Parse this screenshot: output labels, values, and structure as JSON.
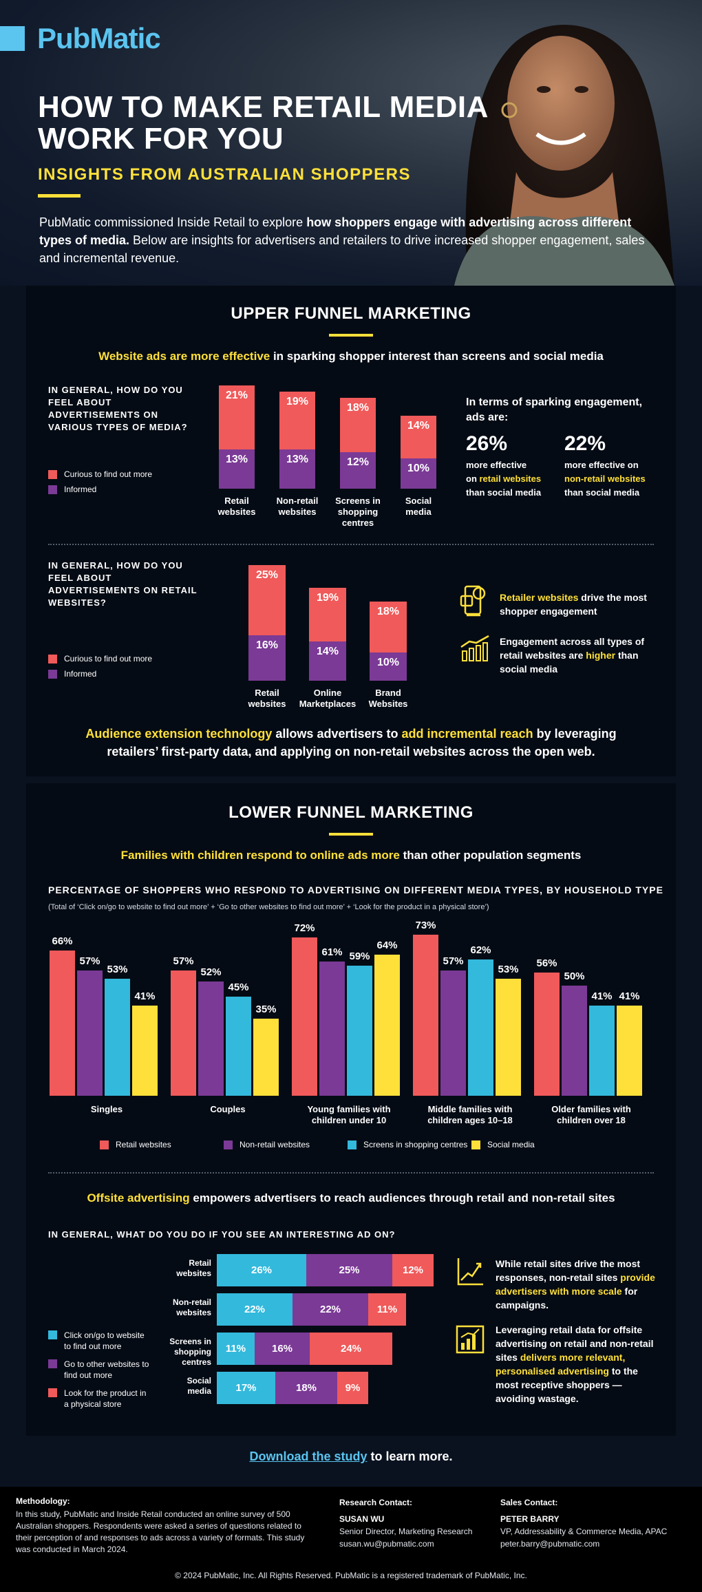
{
  "brand": "PubMatic",
  "hero": {
    "title_line1": "HOW TO MAKE RETAIL MEDIA",
    "title_line2": "WORK FOR YOU",
    "subtitle": "INSIGHTS FROM AUSTRALIAN SHOPPERS",
    "intro_plain1": "PubMatic commissioned Inside Retail to explore ",
    "intro_bold": "how shoppers engage with advertising across different types of media.",
    "intro_plain2": " Below are insights for advertisers and retailers to drive increased shopper engagement, sales and incremental revenue."
  },
  "upper": {
    "heading": "UPPER FUNNEL MARKETING",
    "lead_highlight": "Website ads are more effective",
    "lead_rest": " in sparking shopper interest than screens and social media",
    "q1": "IN GENERAL, HOW DO YOU FEEL ABOUT ADVERTISEMENTS ON VARIOUS TYPES OF MEDIA?",
    "q2": "IN GENERAL, HOW DO YOU FEEL ABOUT ADVERTISEMENTS ON RETAIL WEBSITES?",
    "legend_curious": "Curious to find out more",
    "legend_informed": "Informed",
    "stat_intro": "In terms of sparking engagement, ads are:",
    "stat1_value": "26%",
    "stat1_l1": "more effective",
    "stat1_l2a": "on ",
    "stat1_l2b": "retail websites",
    "stat1_l3": "than social media",
    "stat2_value": "22%",
    "stat2_l1": "more effective on",
    "stat2_l2": "non-retail websites",
    "stat2_l3": "than social media",
    "point1_highlight": "Retailer websites",
    "point1_rest": " drive the most shopper engagement",
    "point2_a": "Engagement across all types of retail websites are ",
    "point2_highlight": "higher",
    "point2_b": " than social media",
    "footer_hl1": "Audience extension technology",
    "footer_p1": " allows advertisers to ",
    "footer_hl2": "add incremental reach",
    "footer_p2": " by leveraging retailers’ first-party data, and applying on non-retail websites across the open web."
  },
  "lower": {
    "heading": "LOWER FUNNEL MARKETING",
    "lead_highlight": "Families with children respond to online ads more",
    "lead_rest": " than other population segments",
    "chart_title": "PERCENTAGE OF SHOPPERS WHO RESPOND TO ADVERTISING ON DIFFERENT MEDIA TYPES, BY HOUSEHOLD TYPE",
    "chart_note": "(Total of ‘Click on/go to website to find out more’ + ‘Go to other websites to find out more’ + ‘Look for the product in a physical store’)",
    "offsite_highlight": "Offsite advertising",
    "offsite_rest": " empowers advertisers to reach audiences through retail and non-retail sites",
    "q3": "IN GENERAL, WHAT DO YOU DO IF YOU SEE AN INTERESTING AD ON?",
    "legend_click": "Click on/go to website to find out more",
    "legend_other": "Go to other websites to find out more",
    "legend_store": "Look for the product in a physical store",
    "insight1_a": "While retail sites drive the most responses, non-retail sites ",
    "insight1_hl": "provide advertisers with more scale",
    "insight1_b": " for campaigns.",
    "insight2_a": "Leveraging retail data for offsite advertising on retail and non-retail sites ",
    "insight2_hl": "delivers more relevant, personalised advertising",
    "insight2_b": " to the most receptive shoppers — avoiding wastage."
  },
  "cta": {
    "link": "Download the study",
    "rest": " to learn more."
  },
  "footer": {
    "method_title": "Methodology:",
    "method_text": "In this study, PubMatic and Inside Retail conducted an online survey of 500 Australian shoppers. Respondents were asked a series of questions related to their perception of and responses to ads across a variety of formats. This study was conducted in March 2024.",
    "research_title": "Research Contact:",
    "research_name": "SUSAN WU",
    "research_role": "Senior Director, Marketing Research",
    "research_email": "susan.wu@pubmatic.com",
    "sales_title": "Sales Contact:",
    "sales_name": "PETER BARRY",
    "sales_role": "VP, Addressability & Commerce Media, APAC",
    "sales_email": "peter.barry@pubmatic.com",
    "copyright": "© 2024 PubMatic, Inc. All Rights Reserved. PubMatic is a registered trademark of PubMatic, Inc."
  },
  "colors": {
    "curious": "#f05a5a",
    "informed": "#7b3a96",
    "retail": "#f05a5a",
    "nonretail": "#7b3a96",
    "screens": "#33b9dc",
    "social": "#ffe03a",
    "accent": "#ffe03a"
  },
  "chart_data": [
    {
      "type": "bar",
      "stacked": true,
      "categories": [
        "Retail websites",
        "Non-retail websites",
        "Screens in shopping centres",
        "Social media"
      ],
      "series": [
        {
          "name": "Curious to find out more",
          "values": [
            21,
            19,
            18,
            14
          ]
        },
        {
          "name": "Informed",
          "values": [
            13,
            13,
            12,
            10
          ]
        }
      ]
    },
    {
      "type": "bar",
      "stacked": true,
      "categories": [
        "Retail websites",
        "Online Marketplaces",
        "Brand Websites"
      ],
      "series": [
        {
          "name": "Curious to find out more",
          "values": [
            25,
            19,
            18
          ]
        },
        {
          "name": "Informed",
          "values": [
            16,
            14,
            10
          ]
        }
      ]
    },
    {
      "type": "bar",
      "categories": [
        "Singles",
        "Couples",
        "Young families with children under 10",
        "Middle families with children ages 10–18",
        "Older families with children over 18"
      ],
      "series": [
        {
          "name": "Retail websites",
          "values": [
            66,
            57,
            72,
            73,
            56
          ]
        },
        {
          "name": "Non-retail websites",
          "values": [
            57,
            52,
            61,
            57,
            50
          ]
        },
        {
          "name": "Screens in shopping centres",
          "values": [
            53,
            45,
            59,
            62,
            41
          ]
        },
        {
          "name": "Social media",
          "values": [
            41,
            35,
            64,
            53,
            41
          ]
        }
      ]
    },
    {
      "type": "bar",
      "orientation": "horizontal",
      "stacked": true,
      "categories": [
        "Retail websites",
        "Non-retail websites",
        "Screens in shopping centres",
        "Social media"
      ],
      "series": [
        {
          "name": "Click on/go to website to find out more",
          "values": [
            26,
            22,
            11,
            17
          ]
        },
        {
          "name": "Go to other websites to find out more",
          "values": [
            25,
            22,
            16,
            18
          ]
        },
        {
          "name": "Look for the product in a physical store",
          "values": [
            12,
            11,
            24,
            9
          ]
        }
      ]
    }
  ]
}
